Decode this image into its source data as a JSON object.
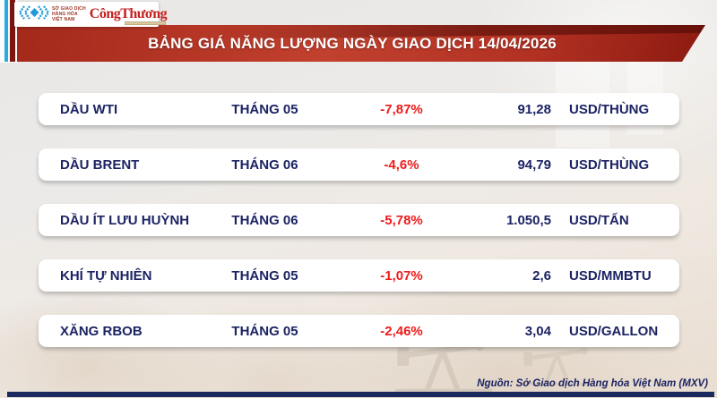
{
  "brand": {
    "mxv_name_lines": [
      "SỞ GIAO DỊCH",
      "HÀNG HÓA",
      "VIỆT NAM"
    ],
    "congthuong_wordmark": "CôngThương"
  },
  "header": {
    "title": "BẢNG GIÁ NĂNG LƯỢNG NGÀY GIAO DỊCH 14/04/2026"
  },
  "table": {
    "rows": [
      {
        "name": "DẦU WTI",
        "month": "THÁNG 05",
        "change": "-7,87%",
        "price": "91,28",
        "unit": "USD/THÙNG"
      },
      {
        "name": "DẦU BRENT",
        "month": "THÁNG 06",
        "change": "-4,6%",
        "price": "94,79",
        "unit": "USD/THÙNG"
      },
      {
        "name": "DẦU ÍT LƯU HUỲNH",
        "month": "THÁNG 06",
        "change": "-5,78%",
        "price": "1.050,5",
        "unit": "USD/TẤN"
      },
      {
        "name": "KHÍ TỰ NHIÊN",
        "month": "THÁNG 05",
        "change": "-1,07%",
        "price": "2,6",
        "unit": "USD/MMBTU"
      },
      {
        "name": "XĂNG RBOB",
        "month": "THÁNG 05",
        "change": "-2,46%",
        "price": "3,04",
        "unit": "USD/GALLON"
      }
    ]
  },
  "footer": {
    "source": "Nguồn: Sở Giao dịch Hàng hóa Việt Nam (MXV)"
  },
  "colors": {
    "navy": "#1b2363",
    "red": "#ee1b1b",
    "banner_red": "#c2402e",
    "banner_dark_red": "#8c1a10",
    "stripe_cyan": "#29abe2",
    "stripe_maroon": "#7a1511",
    "footer_navy": "#1b2a5e",
    "congthuong_red": "#c4201f",
    "mxv_blue": "#1f9ad6",
    "mxv_text_brown": "#9a3324"
  },
  "chart_data": {
    "type": "table",
    "title": "BẢNG GIÁ NĂNG LƯỢNG NGÀY GIAO DỊCH 14/04/2026",
    "rows": [
      {
        "commodity": "DẦU WTI",
        "contract_month": "THÁNG 05",
        "change_pct": -7.87,
        "price": 91.28,
        "unit": "USD/THÙNG"
      },
      {
        "commodity": "DẦU BRENT",
        "contract_month": "THÁNG 06",
        "change_pct": -4.6,
        "price": 94.79,
        "unit": "USD/THÙNG"
      },
      {
        "commodity": "DẦU ÍT LƯU HUỲNH",
        "contract_month": "THÁNG 06",
        "change_pct": -5.78,
        "price": 1050.5,
        "unit": "USD/TẤN"
      },
      {
        "commodity": "KHÍ TỰ NHIÊN",
        "contract_month": "THÁNG 05",
        "change_pct": -1.07,
        "price": 2.6,
        "unit": "USD/MMBTU"
      },
      {
        "commodity": "XĂNG RBOB",
        "contract_month": "THÁNG 05",
        "change_pct": -2.46,
        "price": 3.04,
        "unit": "USD/GALLON"
      }
    ],
    "source": "Nguồn: Sở Giao dịch Hàng hóa Việt Nam (MXV)"
  }
}
